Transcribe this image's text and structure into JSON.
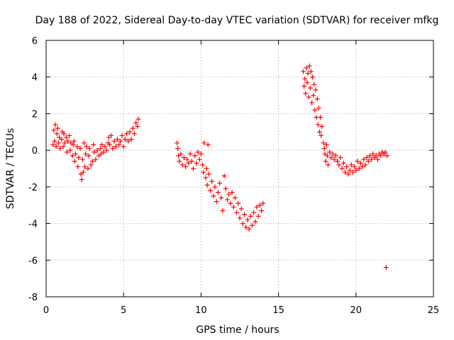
{
  "chart_data": {
    "type": "scatter",
    "title": "Day 188 of 2022, Sidereal Day-to-day VTEC variation (SDTVAR) for receiver mfkg",
    "xlabel": "GPS time / hours",
    "ylabel": "SDTVAR / TECUs",
    "xlim": [
      0,
      25
    ],
    "ylim": [
      -8,
      6
    ],
    "xticks": [
      "0",
      "5",
      "10",
      "15",
      "20",
      "25"
    ],
    "yticks": [
      "-8",
      "-6",
      "-4",
      "-2",
      "0",
      "2",
      "4",
      "6"
    ],
    "grid": true,
    "marker": "+",
    "color": "#ff0000",
    "series": [
      {
        "points": [
          [
            0.45,
            0.3
          ],
          [
            0.5,
            1.1
          ],
          [
            0.55,
            0.5
          ],
          [
            0.6,
            1.4
          ],
          [
            0.65,
            0.2
          ],
          [
            0.7,
            0.9
          ],
          [
            0.75,
            1.2
          ],
          [
            0.8,
            0.4
          ],
          [
            0.85,
            0.7
          ],
          [
            0.9,
            0.1
          ],
          [
            1.0,
            0.6
          ],
          [
            1.05,
            1.0
          ],
          [
            1.1,
            0.2
          ],
          [
            1.15,
            0.9
          ],
          [
            1.2,
            0.4
          ],
          [
            1.3,
            0.7
          ],
          [
            1.35,
            -0.1
          ],
          [
            1.4,
            0.5
          ],
          [
            1.5,
            0.8
          ],
          [
            1.55,
            0.0
          ],
          [
            1.6,
            0.4
          ],
          [
            1.7,
            -0.3
          ],
          [
            1.75,
            0.3
          ],
          [
            1.8,
            0.5
          ],
          [
            1.85,
            -0.6
          ],
          [
            1.9,
            -0.2
          ],
          [
            2.0,
            0.2
          ],
          [
            2.05,
            -0.9
          ],
          [
            2.1,
            -0.4
          ],
          [
            2.2,
            0.1
          ],
          [
            2.25,
            -1.3
          ],
          [
            2.3,
            -1.6
          ],
          [
            2.35,
            -0.5
          ],
          [
            2.4,
            -1.2
          ],
          [
            2.45,
            0.4
          ],
          [
            2.5,
            -0.9
          ],
          [
            2.55,
            -0.2
          ],
          [
            2.6,
            0.2
          ],
          [
            2.7,
            -1.0
          ],
          [
            2.75,
            -0.3
          ],
          [
            2.8,
            0.1
          ],
          [
            2.9,
            -0.8
          ],
          [
            3.0,
            -0.6
          ],
          [
            3.05,
            0.3
          ],
          [
            3.1,
            -0.1
          ],
          [
            3.2,
            -0.5
          ],
          [
            3.3,
            0.0
          ],
          [
            3.4,
            -0.3
          ],
          [
            3.5,
            0.1
          ],
          [
            3.55,
            -0.2
          ],
          [
            3.6,
            0.3
          ],
          [
            3.7,
            -0.1
          ],
          [
            3.8,
            0.2
          ],
          [
            3.9,
            0.0
          ],
          [
            4.0,
            0.4
          ],
          [
            4.05,
            0.7
          ],
          [
            4.1,
            0.3
          ],
          [
            4.2,
            0.8
          ],
          [
            4.3,
            0.1
          ],
          [
            4.4,
            0.5
          ],
          [
            4.5,
            0.2
          ],
          [
            4.6,
            0.6
          ],
          [
            4.7,
            0.3
          ],
          [
            4.8,
            0.5
          ],
          [
            4.9,
            0.8
          ],
          [
            5.0,
            0.2
          ],
          [
            5.1,
            0.6
          ],
          [
            5.2,
            0.9
          ],
          [
            5.3,
            0.5
          ],
          [
            5.4,
            1.0
          ],
          [
            5.5,
            0.6
          ],
          [
            5.6,
            1.2
          ],
          [
            5.7,
            0.9
          ],
          [
            5.8,
            1.5
          ],
          [
            5.9,
            1.3
          ],
          [
            5.95,
            1.7
          ],
          [
            8.45,
            0.4
          ],
          [
            8.5,
            0.1
          ],
          [
            8.55,
            -0.3
          ],
          [
            8.6,
            -0.6
          ],
          [
            8.7,
            -0.2
          ],
          [
            8.8,
            -0.8
          ],
          [
            8.9,
            -0.4
          ],
          [
            9.0,
            -0.9
          ],
          [
            9.1,
            -0.5
          ],
          [
            9.2,
            -0.7
          ],
          [
            9.3,
            -0.2
          ],
          [
            9.4,
            -0.6
          ],
          [
            9.5,
            -1.0
          ],
          [
            9.6,
            -0.3
          ],
          [
            9.7,
            -0.7
          ],
          [
            9.8,
            -0.1
          ],
          [
            9.9,
            -0.5
          ],
          [
            10.0,
            -0.2
          ],
          [
            10.1,
            -0.8
          ],
          [
            10.15,
            -1.2
          ],
          [
            10.2,
            0.4
          ],
          [
            10.3,
            -1.5
          ],
          [
            10.35,
            -1.0
          ],
          [
            10.4,
            -1.9
          ],
          [
            10.45,
            0.3
          ],
          [
            10.5,
            -1.3
          ],
          [
            10.6,
            -2.2
          ],
          [
            10.7,
            -1.7
          ],
          [
            10.8,
            -2.5
          ],
          [
            10.9,
            -2.0
          ],
          [
            11.0,
            -2.8
          ],
          [
            11.1,
            -2.3
          ],
          [
            11.2,
            -1.8
          ],
          [
            11.3,
            -2.6
          ],
          [
            11.4,
            -3.3
          ],
          [
            11.5,
            -1.4
          ],
          [
            11.6,
            -2.1
          ],
          [
            11.7,
            -2.7
          ],
          [
            11.8,
            -2.4
          ],
          [
            11.9,
            -2.9
          ],
          [
            12.0,
            -2.3
          ],
          [
            12.1,
            -3.1
          ],
          [
            12.2,
            -2.6
          ],
          [
            12.3,
            -3.4
          ],
          [
            12.4,
            -2.9
          ],
          [
            12.5,
            -3.7
          ],
          [
            12.6,
            -3.2
          ],
          [
            12.7,
            -4.0
          ],
          [
            12.8,
            -3.5
          ],
          [
            12.9,
            -4.2
          ],
          [
            13.0,
            -3.8
          ],
          [
            13.1,
            -4.3
          ],
          [
            13.2,
            -3.6
          ],
          [
            13.3,
            -4.1
          ],
          [
            13.4,
            -3.4
          ],
          [
            13.5,
            -3.9
          ],
          [
            13.6,
            -3.1
          ],
          [
            13.7,
            -3.6
          ],
          [
            13.8,
            -3.0
          ],
          [
            13.9,
            -3.3
          ],
          [
            14.0,
            -2.9
          ],
          [
            16.6,
            4.3
          ],
          [
            16.65,
            3.5
          ],
          [
            16.7,
            3.9
          ],
          [
            16.75,
            3.1
          ],
          [
            16.8,
            4.5
          ],
          [
            16.85,
            3.7
          ],
          [
            16.9,
            4.2
          ],
          [
            16.95,
            2.9
          ],
          [
            17.0,
            4.6
          ],
          [
            17.05,
            3.4
          ],
          [
            17.1,
            4.3
          ],
          [
            17.15,
            2.6
          ],
          [
            17.2,
            4.0
          ],
          [
            17.25,
            3.0
          ],
          [
            17.3,
            3.6
          ],
          [
            17.35,
            2.2
          ],
          [
            17.4,
            3.3
          ],
          [
            17.45,
            1.8
          ],
          [
            17.5,
            2.8
          ],
          [
            17.55,
            1.4
          ],
          [
            17.6,
            2.3
          ],
          [
            17.65,
            1.0
          ],
          [
            17.7,
            1.8
          ],
          [
            17.75,
            0.8
          ],
          [
            17.8,
            1.3
          ],
          [
            17.9,
            0.4
          ],
          [
            17.95,
            0.1
          ],
          [
            18.0,
            -0.2
          ],
          [
            18.05,
            -0.6
          ],
          [
            18.1,
            0.3
          ],
          [
            18.15,
            -0.3
          ],
          [
            18.2,
            -0.8
          ],
          [
            18.3,
            -0.1
          ],
          [
            18.4,
            -0.4
          ],
          [
            18.5,
            -0.2
          ],
          [
            18.6,
            -0.5
          ],
          [
            18.7,
            -0.3
          ],
          [
            18.8,
            -0.6
          ],
          [
            18.9,
            -0.8
          ],
          [
            19.0,
            -0.4
          ],
          [
            19.1,
            -1.0
          ],
          [
            19.2,
            -0.7
          ],
          [
            19.3,
            -1.2
          ],
          [
            19.4,
            -0.9
          ],
          [
            19.5,
            -1.3
          ],
          [
            19.6,
            -1.1
          ],
          [
            19.7,
            -0.8
          ],
          [
            19.8,
            -1.2
          ],
          [
            19.9,
            -0.9
          ],
          [
            20.0,
            -1.1
          ],
          [
            20.1,
            -0.6
          ],
          [
            20.2,
            -1.0
          ],
          [
            20.3,
            -0.7
          ],
          [
            20.4,
            -0.9
          ],
          [
            20.5,
            -0.5
          ],
          [
            20.6,
            -0.8
          ],
          [
            20.7,
            -0.4
          ],
          [
            20.8,
            -0.6
          ],
          [
            20.9,
            -0.3
          ],
          [
            21.0,
            -0.5
          ],
          [
            21.1,
            -0.2
          ],
          [
            21.2,
            -0.4
          ],
          [
            21.3,
            -0.3
          ],
          [
            21.4,
            -0.5
          ],
          [
            21.5,
            -0.2
          ],
          [
            21.6,
            -0.3
          ],
          [
            21.7,
            -0.1
          ],
          [
            21.8,
            -0.2
          ],
          [
            21.9,
            -0.1
          ],
          [
            22.0,
            -0.3
          ],
          [
            21.95,
            -6.4
          ]
        ]
      }
    ]
  }
}
